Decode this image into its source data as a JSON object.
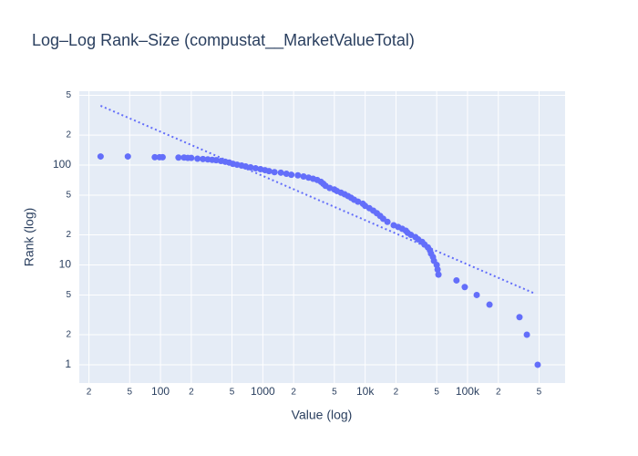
{
  "chart_data": {
    "type": "scatter",
    "title": "Log–Log Rank–Size (compustat__MarketValueTotal)",
    "x_label": "Value (log)",
    "y_label": "Rank (log)",
    "xscale": "log",
    "yscale": "log",
    "grid": true,
    "color": "#636efa",
    "xlim": [
      16.1,
      898000
    ],
    "ylim": [
      0.656,
      550
    ],
    "xticks": [
      {
        "value": 20,
        "label": "2"
      },
      {
        "value": 50,
        "label": "5"
      },
      100,
      {
        "value": 200,
        "label": "2"
      },
      {
        "value": 500,
        "label": "5"
      },
      1000,
      {
        "value": 2000,
        "label": "2"
      },
      {
        "value": 5000,
        "label": "5"
      },
      {
        "value": 10000,
        "label": "10k"
      },
      {
        "value": 20000,
        "label": "2"
      },
      {
        "value": 50000,
        "label": "5"
      },
      {
        "value": 100000,
        "label": "100k"
      },
      {
        "value": 200000,
        "label": "2"
      },
      {
        "value": 500000,
        "label": "5"
      }
    ],
    "yticks": [
      1,
      {
        "value": 2,
        "label": "2"
      },
      {
        "value": 5,
        "label": "5"
      },
      10,
      {
        "value": 20,
        "label": "2"
      },
      {
        "value": 50,
        "label": "5"
      },
      100,
      {
        "value": 200,
        "label": "2"
      },
      {
        "value": 500,
        "label": "5"
      }
    ],
    "x": [
      26,
      48,
      88,
      98,
      105,
      150,
      170,
      185,
      200,
      230,
      260,
      290,
      320,
      350,
      390,
      430,
      470,
      510,
      560,
      620,
      680,
      760,
      850,
      950,
      1050,
      1150,
      1300,
      1500,
      1700,
      1900,
      2200,
      2500,
      2800,
      3100,
      3400,
      3700,
      3900,
      4100,
      4500,
      5000,
      5300,
      5800,
      6300,
      6800,
      7300,
      7800,
      8500,
      9500,
      10000,
      11000,
      12000,
      13000,
      14000,
      15000,
      16500,
      19000,
      21000,
      23000,
      25000,
      26000,
      28000,
      31000,
      33000,
      36000,
      38000,
      41000,
      43000,
      44000,
      46000,
      47000,
      50000,
      51000,
      52000,
      78000,
      94000,
      123000,
      164000,
      322000,
      380000,
      485000
    ],
    "y": [
      122,
      122,
      120,
      120,
      120,
      119,
      119,
      118,
      118,
      116,
      115,
      114,
      113,
      112,
      110,
      108,
      106,
      103,
      101,
      99,
      97,
      95,
      93,
      91,
      89,
      87,
      85,
      84,
      82,
      80,
      79,
      77,
      75,
      73,
      71,
      68,
      65,
      62,
      59,
      57,
      55,
      53,
      51,
      49,
      47,
      45,
      43,
      41,
      39,
      37,
      35,
      33,
      31,
      29,
      27,
      25,
      24,
      23,
      22,
      21,
      20,
      19,
      18,
      17,
      16,
      15,
      14,
      13,
      12,
      11,
      10,
      9,
      8,
      7,
      6,
      5,
      4,
      3,
      2,
      1
    ],
    "trendline": {
      "x": [
        26,
        458000
      ],
      "y": [
        393,
        5.15
      ],
      "color": "#636efa",
      "dash": "dot"
    }
  }
}
